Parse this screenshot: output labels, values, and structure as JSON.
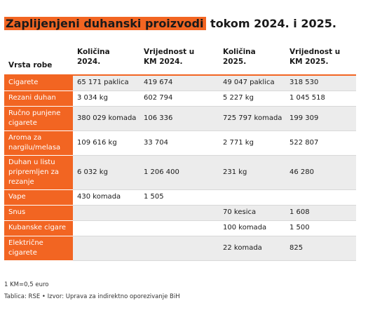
{
  "title": {
    "highlight": "Zaplijenjeni duhanski proizvodi",
    "rest": " tokom 2024. i 2025."
  },
  "headers": [
    "Vrsta robe",
    "Količina\n2024.",
    "Vrijednost u\nKM 2024.",
    "Količina\n2025.",
    "Vrijednost u\nKM 2025."
  ],
  "rows": [
    {
      "cells": [
        "Cigarete",
        "65 171 paklica",
        "419 674",
        "49 047 paklica",
        "318 530"
      ],
      "shade": true
    },
    {
      "cells": [
        "Rezani duhan",
        "3 034 kg",
        "602 794",
        "5 227 kg",
        "1 045 518"
      ],
      "shade": false
    },
    {
      "cells": [
        "Ručno punjene cigarete",
        "380 029 komada",
        "106 336",
        "725 797 komada",
        "199 309"
      ],
      "shade": true
    },
    {
      "cells": [
        "Aroma za nargilu/melasa",
        "109 616 kg",
        "33 704",
        "2 771 kg",
        "522 807"
      ],
      "shade": false
    },
    {
      "cells": [
        "Duhan u listu pripremljen za rezanje",
        "6 032 kg",
        "1 206 400",
        "231 kg",
        "46 280"
      ],
      "shade": true
    },
    {
      "cells": [
        "Vape",
        "430 komada",
        "1 505",
        "",
        ""
      ],
      "shade": false
    },
    {
      "cells": [
        "Snus",
        "",
        "",
        "70 kesica",
        "1 608"
      ],
      "shade": true
    },
    {
      "cells": [
        "Kubanske cigare",
        "",
        "",
        "100 komada",
        "1 500"
      ],
      "shade": false
    },
    {
      "cells": [
        "Električne cigarete",
        "",
        "",
        "22 komada",
        "825"
      ],
      "shade": true
    }
  ],
  "notes": {
    "rate": "1 KM=0,5 euro",
    "source": "Tablica: RSE • Izvor: Uprava za indirektno oporezivanje BiH"
  },
  "colors": {
    "accent": "#f26522",
    "shade": "#ececec"
  }
}
